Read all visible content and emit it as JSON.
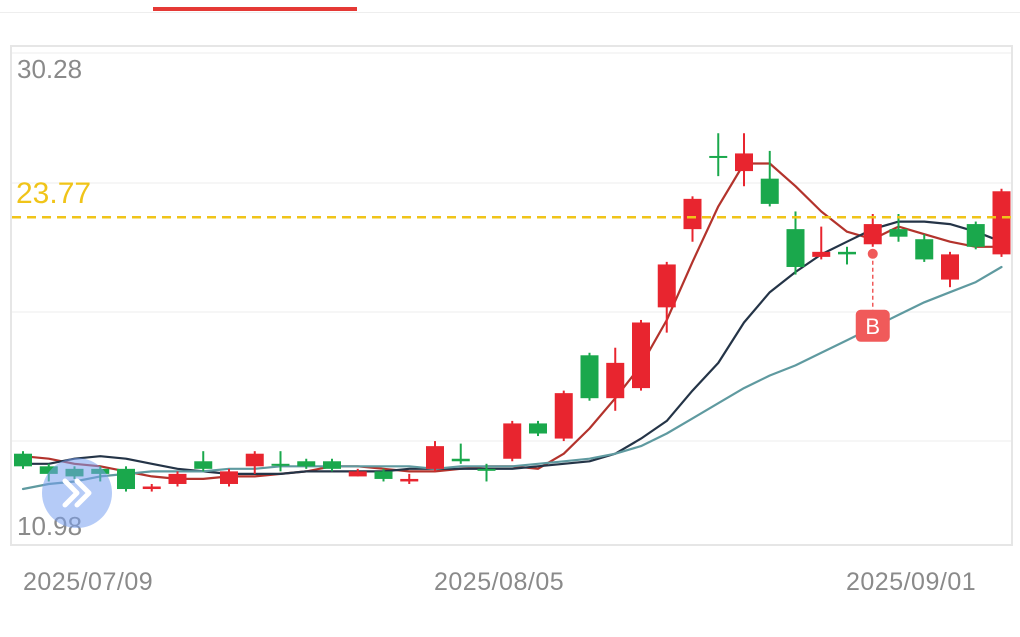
{
  "colors": {
    "up": "#e8252f",
    "down": "#1aa84c",
    "ma5": "#b3332c",
    "ma10": "#243447",
    "ma20": "#5f9aa0",
    "current_price_line": "#f0c419",
    "marker": "#f05a5a",
    "tab_indicator": "#e53935"
  },
  "y_axis": {
    "top_label": "30.28",
    "bottom_label": "10.98",
    "current_price_label": "23.77"
  },
  "x_axis": {
    "labels": [
      "2025/07/09",
      "2025/08/05",
      "2025/09/01"
    ]
  },
  "marker": {
    "label": "B"
  },
  "chart_data": {
    "type": "candlestick",
    "ylim": [
      10.98,
      30.28
    ],
    "current_price": 23.77,
    "grid": true,
    "candles": [
      {
        "o": 14.4,
        "c": 13.9,
        "h": 14.5,
        "l": 13.8
      },
      {
        "o": 13.9,
        "c": 13.6,
        "h": 14.0,
        "l": 13.3
      },
      {
        "o": 13.8,
        "c": 13.5,
        "h": 13.9,
        "l": 13.4
      },
      {
        "o": 13.8,
        "c": 13.6,
        "h": 13.9,
        "l": 13.3
      },
      {
        "o": 13.8,
        "c": 13.0,
        "h": 13.9,
        "l": 12.9
      },
      {
        "o": 13.0,
        "c": 13.1,
        "h": 13.2,
        "l": 12.9
      },
      {
        "o": 13.2,
        "c": 13.6,
        "h": 13.7,
        "l": 13.1
      },
      {
        "o": 14.1,
        "c": 13.8,
        "h": 14.5,
        "l": 13.7
      },
      {
        "o": 13.2,
        "c": 13.7,
        "h": 13.8,
        "l": 13.1
      },
      {
        "o": 13.9,
        "c": 14.4,
        "h": 14.5,
        "l": 13.6
      },
      {
        "o": 14.0,
        "c": 14.0,
        "h": 14.5,
        "l": 13.7
      },
      {
        "o": 14.1,
        "c": 13.9,
        "h": 14.2,
        "l": 13.8
      },
      {
        "o": 14.1,
        "c": 13.8,
        "h": 14.2,
        "l": 13.7
      },
      {
        "o": 13.5,
        "c": 13.7,
        "h": 13.8,
        "l": 13.5
      },
      {
        "o": 13.7,
        "c": 13.4,
        "h": 13.8,
        "l": 13.3
      },
      {
        "o": 13.3,
        "c": 13.4,
        "h": 13.6,
        "l": 13.2
      },
      {
        "o": 13.8,
        "c": 14.7,
        "h": 14.9,
        "l": 13.7
      },
      {
        "o": 14.2,
        "c": 14.1,
        "h": 14.8,
        "l": 14.0
      },
      {
        "o": 13.8,
        "c": 13.8,
        "h": 14.0,
        "l": 13.3
      },
      {
        "o": 14.2,
        "c": 15.6,
        "h": 15.7,
        "l": 14.1
      },
      {
        "o": 15.6,
        "c": 15.2,
        "h": 15.7,
        "l": 15.1
      },
      {
        "o": 15.0,
        "c": 16.8,
        "h": 16.9,
        "l": 14.9
      },
      {
        "o": 18.3,
        "c": 16.6,
        "h": 18.4,
        "l": 16.5
      },
      {
        "o": 16.6,
        "c": 18.0,
        "h": 18.6,
        "l": 16.1
      },
      {
        "o": 17.0,
        "c": 19.6,
        "h": 19.7,
        "l": 16.9
      },
      {
        "o": 20.2,
        "c": 21.9,
        "h": 22.0,
        "l": 19.2
      },
      {
        "o": 23.3,
        "c": 24.5,
        "h": 24.6,
        "l": 22.8
      },
      {
        "o": 26.2,
        "c": 26.2,
        "h": 27.1,
        "l": 25.4
      },
      {
        "o": 25.6,
        "c": 26.3,
        "h": 27.1,
        "l": 25.0
      },
      {
        "o": 25.3,
        "c": 24.3,
        "h": 26.4,
        "l": 24.2
      },
      {
        "o": 23.3,
        "c": 21.8,
        "h": 24.0,
        "l": 21.5
      },
      {
        "o": 22.2,
        "c": 22.4,
        "h": 23.4,
        "l": 22.1
      },
      {
        "o": 22.4,
        "c": 22.3,
        "h": 22.6,
        "l": 21.9
      },
      {
        "o": 22.7,
        "c": 23.5,
        "h": 23.9,
        "l": 22.6
      },
      {
        "o": 23.3,
        "c": 23.0,
        "h": 23.9,
        "l": 22.8
      },
      {
        "o": 22.9,
        "c": 22.1,
        "h": 23.1,
        "l": 22.0
      },
      {
        "o": 21.3,
        "c": 22.3,
        "h": 22.4,
        "l": 21.0
      },
      {
        "o": 23.5,
        "c": 22.6,
        "h": 23.6,
        "l": 22.5
      },
      {
        "o": 22.3,
        "c": 24.8,
        "h": 24.9,
        "l": 22.2
      }
    ],
    "moving_averages": [
      {
        "key": "ma5",
        "values": [
          14.3,
          14.2,
          14.0,
          13.9,
          13.7,
          13.5,
          13.4,
          13.4,
          13.5,
          13.5,
          13.6,
          13.7,
          13.9,
          13.9,
          13.8,
          13.7,
          13.7,
          13.8,
          13.9,
          13.9,
          13.8,
          14.4,
          15.4,
          16.6,
          17.9,
          19.7,
          22.0,
          24.2,
          25.9,
          25.9,
          25.0,
          24.0,
          23.2,
          22.9,
          23.4,
          23.1,
          22.8,
          22.6,
          22.6
        ]
      },
      {
        "key": "ma10",
        "values": [
          14.0,
          14.0,
          14.2,
          14.3,
          14.2,
          14.0,
          13.8,
          13.7,
          13.6,
          13.6,
          13.6,
          13.7,
          13.7,
          13.7,
          13.7,
          13.8,
          13.8,
          13.8,
          13.8,
          13.8,
          13.9,
          14.0,
          14.1,
          14.4,
          15.0,
          15.7,
          16.9,
          18.0,
          19.6,
          20.8,
          21.6,
          22.3,
          22.8,
          23.3,
          23.6,
          23.6,
          23.5,
          23.2,
          22.8
        ]
      },
      {
        "key": "ma20",
        "values": [
          13.0,
          13.2,
          13.3,
          13.5,
          13.6,
          13.7,
          13.7,
          13.7,
          13.8,
          13.8,
          13.9,
          13.9,
          13.9,
          13.9,
          13.9,
          13.9,
          13.8,
          13.9,
          13.9,
          13.9,
          14.0,
          14.1,
          14.2,
          14.4,
          14.7,
          15.2,
          15.8,
          16.4,
          17.0,
          17.5,
          17.9,
          18.4,
          18.9,
          19.4,
          19.9,
          20.4,
          20.8,
          21.2,
          21.8
        ]
      }
    ],
    "marker_candle_index": 33,
    "x_tick_labels": [
      "2025/07/09",
      "2025/08/05",
      "2025/09/01"
    ]
  }
}
